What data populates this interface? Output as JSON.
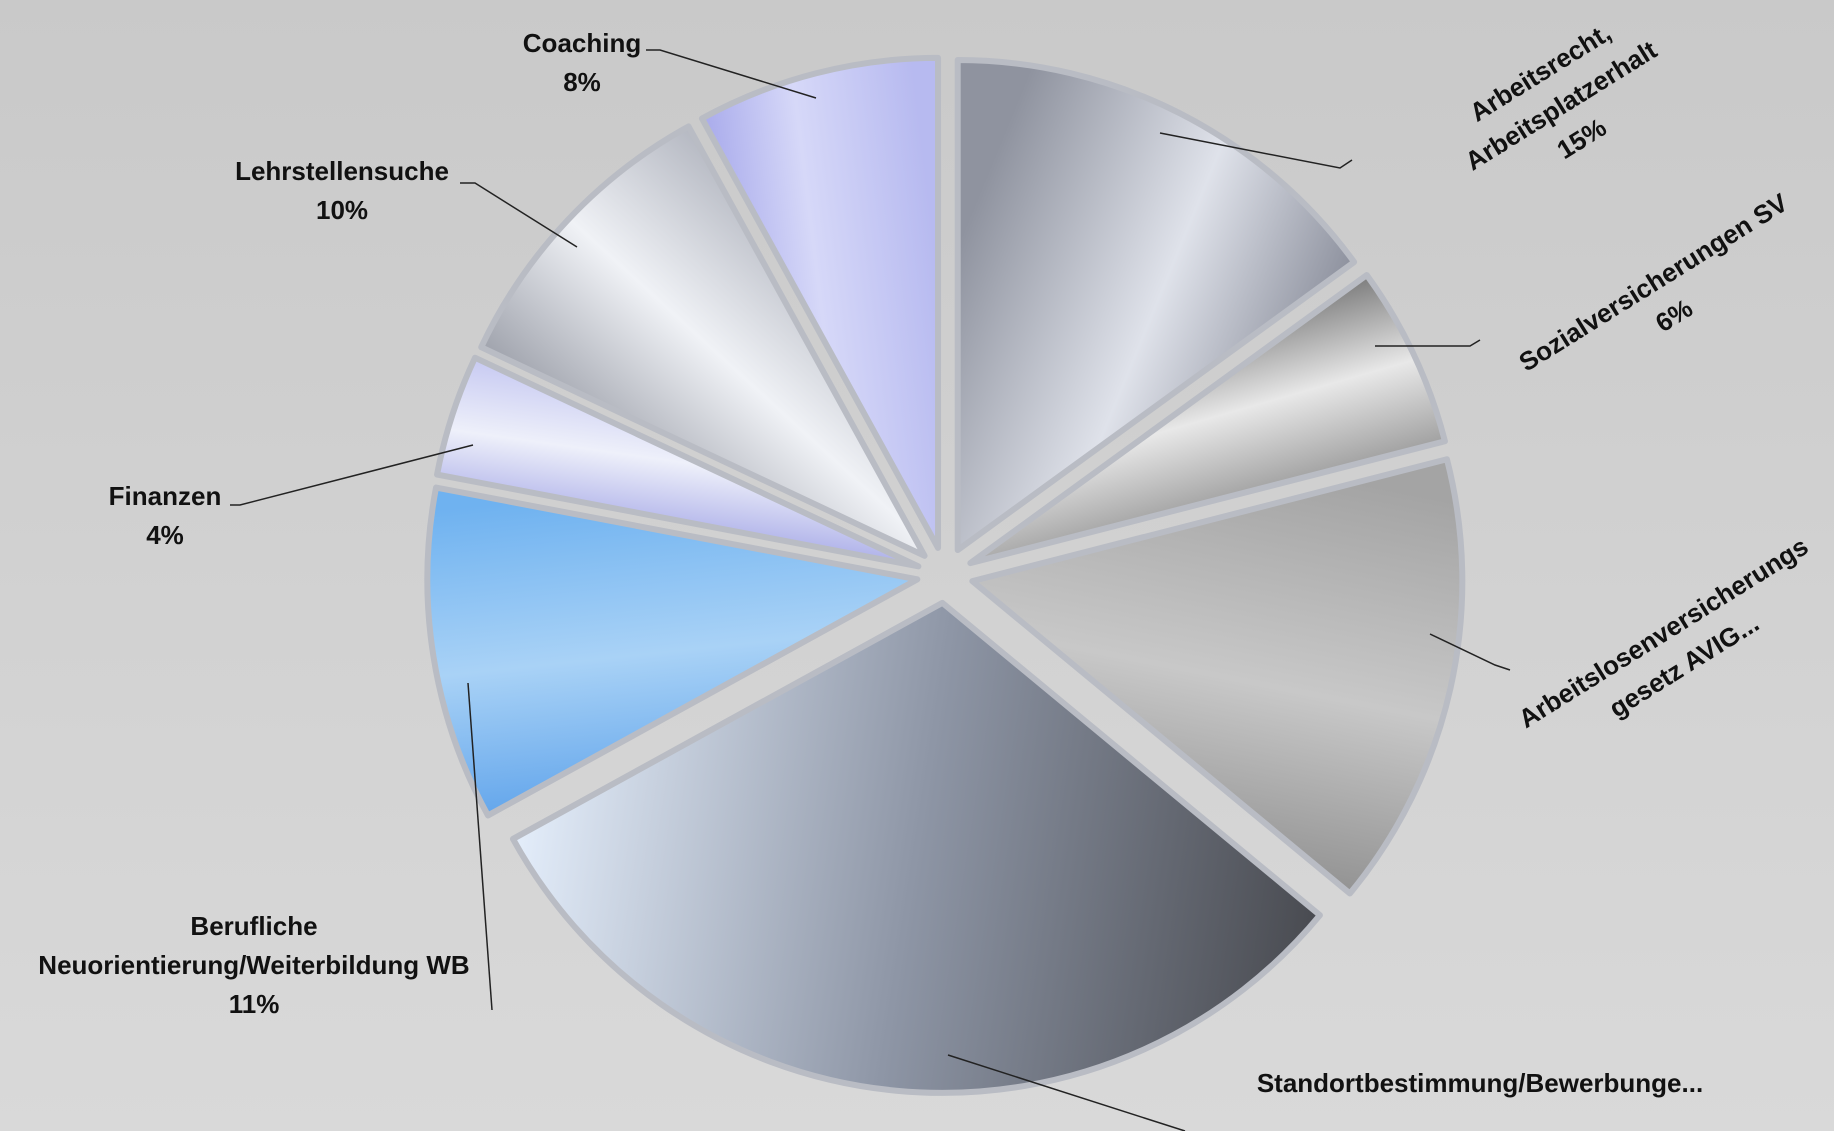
{
  "chart_data": {
    "type": "pie",
    "style": "exploded",
    "title": "",
    "slices": [
      {
        "label": "Arbeitsrecht, Arbeitsplatzerhalt",
        "label_lines": [
          "Arbeitsrecht,",
          "Arbeitsplatzerhalt"
        ],
        "percent_label": "15%",
        "value": 15,
        "colors": [
          "#8f939f",
          "#dfe2ea",
          "#7a7e8c"
        ]
      },
      {
        "label": "Sozialversicherungen SV",
        "label_lines": [
          "Sozialversicherungen SV"
        ],
        "percent_label": "6%",
        "value": 6,
        "colors": [
          "#3a3a3a",
          "#e8e8e8",
          "#6a6a6a"
        ]
      },
      {
        "label": "Arbeitslosenversicherungs gesetz AVIG...",
        "label_lines": [
          "Arbeitslosenversicherungs",
          "gesetz AVIG..."
        ],
        "percent_label": "",
        "value": 15,
        "colors": [
          "#a4a4a4",
          "#c8c8c8",
          "#8a8a8a"
        ]
      },
      {
        "label": "Standortbestimmung/Bewerbunge...",
        "label_lines": [
          "Standortbestimmung/Bewerbunge..."
        ],
        "percent_label": "",
        "value": 31,
        "colors": [
          "#4a4c52",
          "#8e96a6",
          "#e4eefb"
        ]
      },
      {
        "label": "Berufliche Neuorientierung/Weiterbildung WB",
        "label_lines": [
          "Berufliche",
          "Neuorientierung/Weiterbildung WB"
        ],
        "percent_label": "11%",
        "value": 11,
        "colors": [
          "#5aa0ea",
          "#a9d2f6",
          "#6fb2f0"
        ]
      },
      {
        "label": "Finanzen",
        "label_lines": [
          "Finanzen"
        ],
        "percent_label": "4%",
        "value": 4,
        "colors": [
          "#8c8fe0",
          "#eef0fa",
          "#b5b8ee"
        ]
      },
      {
        "label": "Lehrstellensuche",
        "label_lines": [
          "Lehrstellensuche"
        ],
        "percent_label": "10%",
        "value": 10,
        "colors": [
          "#7e828e",
          "#f0f2f6",
          "#9a9eaa"
        ]
      },
      {
        "label": "Coaching",
        "label_lines": [
          "Coaching"
        ],
        "percent_label": "8%",
        "value": 8,
        "colors": [
          "#9c9ee8",
          "#d6d8f8",
          "#b7baf0"
        ]
      }
    ],
    "legend": "none"
  }
}
